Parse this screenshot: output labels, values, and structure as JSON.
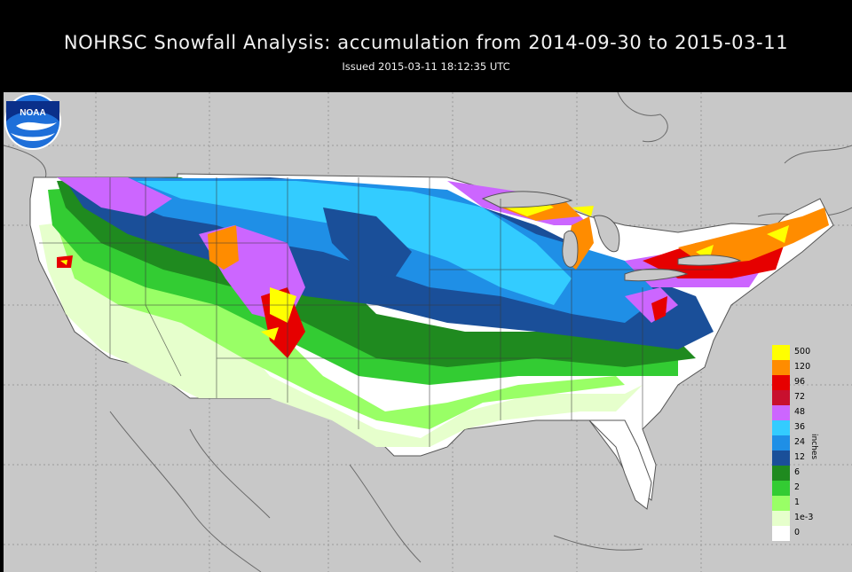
{
  "header": {
    "title": "NOHRSC Snowfall Analysis: accumulation from 2014-09-30 to 2015-03-11",
    "issued": "Issued 2015-03-11 18:12:35 UTC"
  },
  "logo": {
    "text": "NOAA",
    "icon": "noaa-logo-icon"
  },
  "legend": {
    "unit": "inches",
    "classes": [
      {
        "label": "500",
        "color": "#ffff00"
      },
      {
        "label": "120",
        "color": "#ff8c00"
      },
      {
        "label": "96",
        "color": "#e60000"
      },
      {
        "label": "72",
        "color": "#c8102e"
      },
      {
        "label": "48",
        "color": "#cc66ff"
      },
      {
        "label": "36",
        "color": "#33ccff"
      },
      {
        "label": "24",
        "color": "#1f8fe6"
      },
      {
        "label": "12",
        "color": "#1a4f99"
      },
      {
        "label": "6",
        "color": "#1f8a1f"
      },
      {
        "label": "2",
        "color": "#33cc33"
      },
      {
        "label": "1",
        "color": "#99ff66"
      },
      {
        "label": "1e-3",
        "color": "#e6ffcc"
      },
      {
        "label": "0",
        "color": "#ffffff"
      }
    ]
  },
  "colors": {
    "background": "#c8c8c8",
    "header_bg": "#000000",
    "border_lines": "#555555"
  }
}
